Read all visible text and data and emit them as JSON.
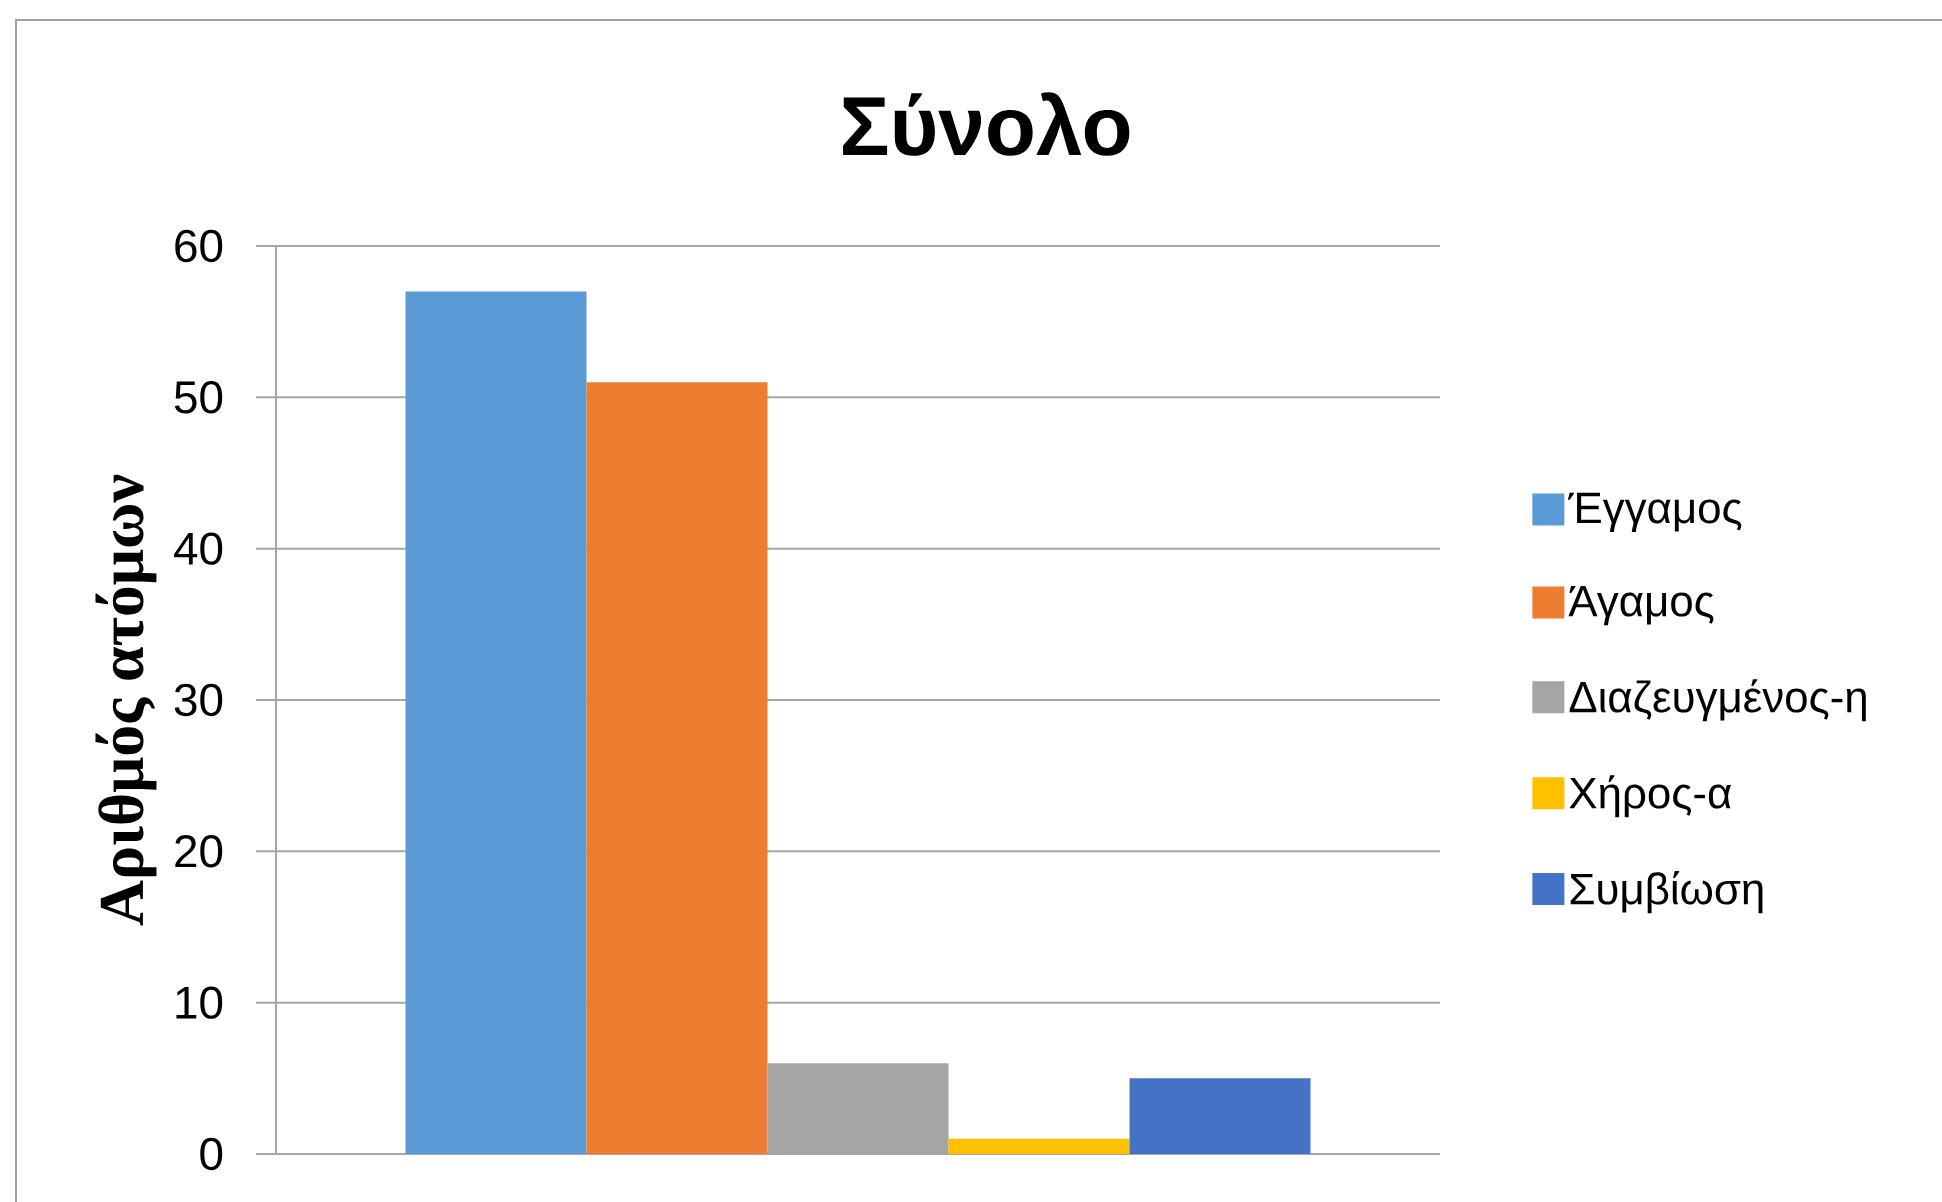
{
  "chart_data": {
    "type": "bar",
    "title": "Σύνολο",
    "ylabel": "Αριθμός ατόμων",
    "categories": [
      null
    ],
    "series": [
      {
        "name": "Έγγαμος",
        "color": "#5b9bd5",
        "values": [
          57
        ]
      },
      {
        "name": "Άγαμος",
        "color": "#ed7d31",
        "values": [
          51
        ]
      },
      {
        "name": "Διαζευγμένος-η",
        "color": "#a5a5a5",
        "values": [
          6
        ]
      },
      {
        "name": "Χήρος-α",
        "color": "#ffc000",
        "values": [
          1
        ]
      },
      {
        "name": "Συμβίωση",
        "color": "#4472c4",
        "values": [
          5
        ]
      }
    ],
    "ylim": [
      0,
      60
    ],
    "yticks": [
      0,
      10,
      20,
      30,
      40,
      50,
      60
    ],
    "grid": "y",
    "legend": "right"
  }
}
